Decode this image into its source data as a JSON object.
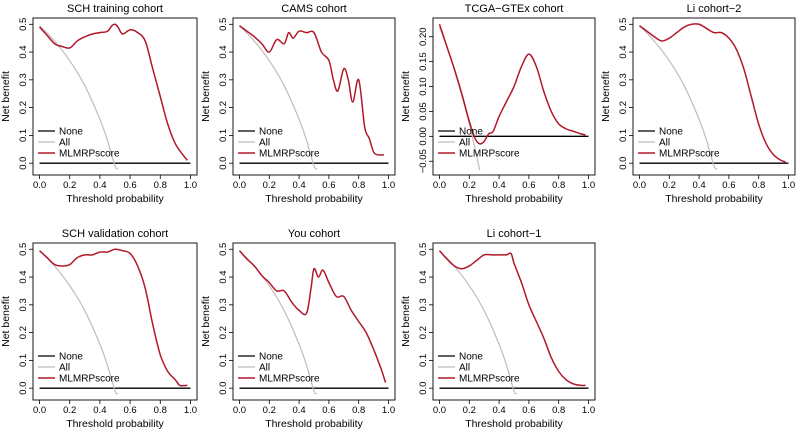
{
  "chart_data": [
    {
      "type": "line",
      "title": "SCH training cohort",
      "xlabel": "Threshold probability",
      "ylabel": "Net benefit",
      "xlim": [
        0,
        1
      ],
      "ylim": [
        -0.02,
        0.5
      ],
      "xticks": [
        "0.0",
        "0.2",
        "0.4",
        "0.6",
        "0.8",
        "1.0"
      ],
      "yticks": [
        "0.0",
        "0.1",
        "0.2",
        "0.3",
        "0.4",
        "0.5"
      ],
      "ytick_values": [
        0,
        0.1,
        0.2,
        0.3,
        0.4,
        0.5
      ],
      "prevalence": 0.495,
      "legend": [
        "None",
        "All",
        "MLMRPscore"
      ],
      "series": [
        {
          "name": "None",
          "color": "#000000",
          "x": [
            0,
            1
          ],
          "y": [
            0,
            0
          ]
        },
        {
          "name": "All",
          "color": "#bebebe",
          "x": [
            0,
            0.1,
            0.2,
            0.3,
            0.4,
            0.45,
            0.5,
            0.52
          ],
          "y": [
            0.495,
            0.439,
            0.369,
            0.279,
            0.158,
            0.082,
            -0.01,
            -0.02
          ]
        },
        {
          "name": "MLMRPscore",
          "color": "#b2182b",
          "x": [
            0,
            0.05,
            0.1,
            0.15,
            0.2,
            0.25,
            0.3,
            0.35,
            0.4,
            0.45,
            0.48,
            0.5,
            0.52,
            0.55,
            0.6,
            0.65,
            0.7,
            0.75,
            0.8,
            0.85,
            0.9,
            0.95,
            0.98
          ],
          "y": [
            0.49,
            0.46,
            0.43,
            0.42,
            0.415,
            0.44,
            0.455,
            0.465,
            0.47,
            0.475,
            0.495,
            0.5,
            0.49,
            0.465,
            0.48,
            0.47,
            0.44,
            0.34,
            0.24,
            0.14,
            0.07,
            0.03,
            0.01
          ]
        }
      ]
    },
    {
      "type": "line",
      "title": "CAMS cohort",
      "xlabel": "Threshold probability",
      "ylabel": "Net benefit",
      "xlim": [
        0,
        1
      ],
      "ylim": [
        -0.02,
        0.5
      ],
      "xticks": [
        "0.0",
        "0.2",
        "0.4",
        "0.6",
        "0.8",
        "1.0"
      ],
      "yticks": [
        "0.0",
        "0.1",
        "0.2",
        "0.3",
        "0.4",
        "0.5"
      ],
      "ytick_values": [
        0,
        0.1,
        0.2,
        0.3,
        0.4,
        0.5
      ],
      "prevalence": 0.495,
      "legend": [
        "None",
        "All",
        "MLMRPscore"
      ],
      "series": [
        {
          "name": "None",
          "color": "#000000",
          "x": [
            0,
            1
          ],
          "y": [
            0,
            0
          ]
        },
        {
          "name": "All",
          "color": "#bebebe",
          "x": [
            0,
            0.1,
            0.2,
            0.3,
            0.4,
            0.45,
            0.5,
            0.52
          ],
          "y": [
            0.495,
            0.439,
            0.369,
            0.279,
            0.158,
            0.082,
            -0.01,
            -0.02
          ]
        },
        {
          "name": "MLMRPscore",
          "color": "#b2182b",
          "x": [
            0,
            0.05,
            0.1,
            0.15,
            0.2,
            0.25,
            0.3,
            0.33,
            0.36,
            0.4,
            0.45,
            0.5,
            0.55,
            0.6,
            0.63,
            0.66,
            0.7,
            0.73,
            0.76,
            0.8,
            0.84,
            0.87,
            0.9,
            0.93,
            0.97
          ],
          "y": [
            0.495,
            0.475,
            0.455,
            0.43,
            0.4,
            0.445,
            0.43,
            0.47,
            0.45,
            0.475,
            0.47,
            0.47,
            0.4,
            0.37,
            0.3,
            0.26,
            0.34,
            0.3,
            0.22,
            0.3,
            0.13,
            0.09,
            0.04,
            0.03,
            0.03
          ]
        }
      ]
    },
    {
      "type": "line",
      "title": "TCGA−GTEx cohort",
      "xlabel": "Threshold probability",
      "ylabel": "Net benefit",
      "xlim": [
        0,
        1
      ],
      "ylim": [
        -0.065,
        0.225
      ],
      "xticks": [
        "0.0",
        "0.2",
        "0.4",
        "0.6",
        "0.8",
        "1.0"
      ],
      "yticks": [
        "−0.05",
        "0.00",
        "0.05",
        "0.10",
        "0.15",
        "0.20"
      ],
      "ytick_values": [
        -0.05,
        0,
        0.05,
        0.1,
        0.15,
        0.2
      ],
      "prevalence": 0.22,
      "legend": [
        "None",
        "All",
        "MLMRPscore"
      ],
      "series": [
        {
          "name": "None",
          "color": "#000000",
          "x": [
            0,
            1
          ],
          "y": [
            0,
            0
          ]
        },
        {
          "name": "All",
          "color": "#bebebe",
          "x": [
            0,
            0.05,
            0.1,
            0.15,
            0.2,
            0.22,
            0.25,
            0.27
          ],
          "y": [
            0.22,
            0.179,
            0.133,
            0.082,
            0.025,
            0,
            -0.04,
            -0.068
          ]
        },
        {
          "name": "MLMRPscore",
          "color": "#b2182b",
          "x": [
            0,
            0.05,
            0.1,
            0.15,
            0.2,
            0.24,
            0.27,
            0.3,
            0.33,
            0.36,
            0.4,
            0.45,
            0.5,
            0.55,
            0.6,
            0.65,
            0.7,
            0.75,
            0.8,
            0.85,
            0.9,
            0.95,
            0.98
          ],
          "y": [
            0.225,
            0.18,
            0.135,
            0.085,
            0.03,
            -0.005,
            -0.015,
            -0.01,
            0.005,
            0.01,
            0.04,
            0.07,
            0.1,
            0.14,
            0.165,
            0.14,
            0.09,
            0.05,
            0.025,
            0.015,
            0.01,
            0.005,
            0.003
          ]
        }
      ]
    },
    {
      "type": "line",
      "title": "Li cohort−2",
      "xlabel": "Threshold probability",
      "ylabel": "Net benefit",
      "xlim": [
        0,
        1
      ],
      "ylim": [
        -0.02,
        0.5
      ],
      "xticks": [
        "0.0",
        "0.2",
        "0.4",
        "0.6",
        "0.8",
        "1.0"
      ],
      "yticks": [
        "0.0",
        "0.1",
        "0.2",
        "0.3",
        "0.4",
        "0.5"
      ],
      "ytick_values": [
        0,
        0.1,
        0.2,
        0.3,
        0.4,
        0.5
      ],
      "prevalence": 0.495,
      "legend": [
        "None",
        "All",
        "MLMRPscore"
      ],
      "series": [
        {
          "name": "None",
          "color": "#000000",
          "x": [
            0,
            1
          ],
          "y": [
            0,
            0
          ]
        },
        {
          "name": "All",
          "color": "#bebebe",
          "x": [
            0,
            0.1,
            0.2,
            0.3,
            0.4,
            0.45,
            0.5,
            0.52
          ],
          "y": [
            0.495,
            0.439,
            0.369,
            0.279,
            0.158,
            0.082,
            -0.01,
            -0.02
          ]
        },
        {
          "name": "MLMRPscore",
          "color": "#b2182b",
          "x": [
            0,
            0.05,
            0.1,
            0.15,
            0.2,
            0.25,
            0.3,
            0.35,
            0.4,
            0.45,
            0.5,
            0.55,
            0.6,
            0.65,
            0.7,
            0.75,
            0.8,
            0.85,
            0.9,
            0.95,
            0.98
          ],
          "y": [
            0.495,
            0.475,
            0.455,
            0.44,
            0.45,
            0.47,
            0.49,
            0.5,
            0.5,
            0.485,
            0.47,
            0.47,
            0.45,
            0.41,
            0.34,
            0.24,
            0.14,
            0.07,
            0.03,
            0.01,
            0.005
          ]
        }
      ]
    },
    {
      "type": "line",
      "title": "SCH validation cohort",
      "xlabel": "Threshold probability",
      "ylabel": "Net benefit",
      "xlim": [
        0,
        1
      ],
      "ylim": [
        -0.02,
        0.5
      ],
      "xticks": [
        "0.0",
        "0.2",
        "0.4",
        "0.6",
        "0.8",
        "1.0"
      ],
      "yticks": [
        "0.0",
        "0.1",
        "0.2",
        "0.3",
        "0.4",
        "0.5"
      ],
      "ytick_values": [
        0,
        0.1,
        0.2,
        0.3,
        0.4,
        0.5
      ],
      "prevalence": 0.495,
      "legend": [
        "None",
        "All",
        "MLMRPscore"
      ],
      "series": [
        {
          "name": "None",
          "color": "#000000",
          "x": [
            0,
            1
          ],
          "y": [
            0,
            0
          ]
        },
        {
          "name": "All",
          "color": "#bebebe",
          "x": [
            0,
            0.1,
            0.2,
            0.3,
            0.4,
            0.45,
            0.5,
            0.52
          ],
          "y": [
            0.495,
            0.439,
            0.369,
            0.279,
            0.158,
            0.082,
            -0.01,
            -0.02
          ]
        },
        {
          "name": "MLMRPscore",
          "color": "#b2182b",
          "x": [
            0,
            0.05,
            0.1,
            0.15,
            0.2,
            0.25,
            0.3,
            0.35,
            0.4,
            0.45,
            0.5,
            0.55,
            0.6,
            0.65,
            0.7,
            0.75,
            0.8,
            0.85,
            0.9,
            0.93,
            0.98
          ],
          "y": [
            0.495,
            0.47,
            0.445,
            0.44,
            0.445,
            0.47,
            0.48,
            0.48,
            0.49,
            0.49,
            0.5,
            0.495,
            0.485,
            0.44,
            0.36,
            0.23,
            0.12,
            0.06,
            0.03,
            0.01,
            0.01
          ]
        }
      ]
    },
    {
      "type": "line",
      "title": "You cohort",
      "xlabel": "Threshold probability",
      "ylabel": "Net benefit",
      "xlim": [
        0,
        1
      ],
      "ylim": [
        -0.02,
        0.5
      ],
      "xticks": [
        "0.0",
        "0.2",
        "0.4",
        "0.6",
        "0.8",
        "1.0"
      ],
      "yticks": [
        "0.0",
        "0.1",
        "0.2",
        "0.3",
        "0.4",
        "0.5"
      ],
      "ytick_values": [
        0,
        0.1,
        0.2,
        0.3,
        0.4,
        0.5
      ],
      "prevalence": 0.495,
      "legend": [
        "None",
        "All",
        "MLMRPscore"
      ],
      "series": [
        {
          "name": "None",
          "color": "#000000",
          "x": [
            0,
            1
          ],
          "y": [
            0,
            0
          ]
        },
        {
          "name": "All",
          "color": "#bebebe",
          "x": [
            0,
            0.1,
            0.2,
            0.3,
            0.4,
            0.45,
            0.5,
            0.52
          ],
          "y": [
            0.495,
            0.439,
            0.369,
            0.279,
            0.158,
            0.082,
            -0.01,
            -0.02
          ]
        },
        {
          "name": "MLMRPscore",
          "color": "#b2182b",
          "x": [
            0,
            0.05,
            0.1,
            0.15,
            0.2,
            0.25,
            0.3,
            0.35,
            0.4,
            0.45,
            0.48,
            0.5,
            0.53,
            0.56,
            0.6,
            0.65,
            0.7,
            0.75,
            0.8,
            0.85,
            0.9,
            0.95,
            0.98
          ],
          "y": [
            0.495,
            0.465,
            0.44,
            0.405,
            0.38,
            0.35,
            0.35,
            0.31,
            0.28,
            0.27,
            0.36,
            0.43,
            0.4,
            0.425,
            0.38,
            0.33,
            0.33,
            0.28,
            0.24,
            0.2,
            0.14,
            0.07,
            0.02
          ]
        }
      ]
    },
    {
      "type": "line",
      "title": "Li cohort−1",
      "xlabel": "Threshold probability",
      "ylabel": "Net benefit",
      "xlim": [
        0,
        1
      ],
      "ylim": [
        -0.02,
        0.5
      ],
      "xticks": [
        "0.0",
        "0.2",
        "0.4",
        "0.6",
        "0.8",
        "1.0"
      ],
      "yticks": [
        "0.0",
        "0.1",
        "0.2",
        "0.3",
        "0.4",
        "0.5"
      ],
      "ytick_values": [
        0,
        0.1,
        0.2,
        0.3,
        0.4,
        0.5
      ],
      "prevalence": 0.495,
      "legend": [
        "None",
        "All",
        "MLMRPscore"
      ],
      "series": [
        {
          "name": "None",
          "color": "#000000",
          "x": [
            0,
            1
          ],
          "y": [
            0,
            0
          ]
        },
        {
          "name": "All",
          "color": "#bebebe",
          "x": [
            0,
            0.1,
            0.2,
            0.3,
            0.4,
            0.45,
            0.5,
            0.52
          ],
          "y": [
            0.495,
            0.439,
            0.369,
            0.279,
            0.158,
            0.082,
            -0.01,
            -0.02
          ]
        },
        {
          "name": "MLMRPscore",
          "color": "#b2182b",
          "x": [
            0,
            0.05,
            0.1,
            0.15,
            0.2,
            0.25,
            0.3,
            0.35,
            0.4,
            0.45,
            0.48,
            0.5,
            0.55,
            0.6,
            0.65,
            0.7,
            0.75,
            0.8,
            0.85,
            0.9,
            0.95,
            0.98
          ],
          "y": [
            0.495,
            0.465,
            0.44,
            0.43,
            0.44,
            0.46,
            0.48,
            0.48,
            0.48,
            0.48,
            0.485,
            0.45,
            0.38,
            0.3,
            0.24,
            0.18,
            0.11,
            0.06,
            0.03,
            0.015,
            0.01,
            0.01
          ]
        }
      ]
    }
  ]
}
